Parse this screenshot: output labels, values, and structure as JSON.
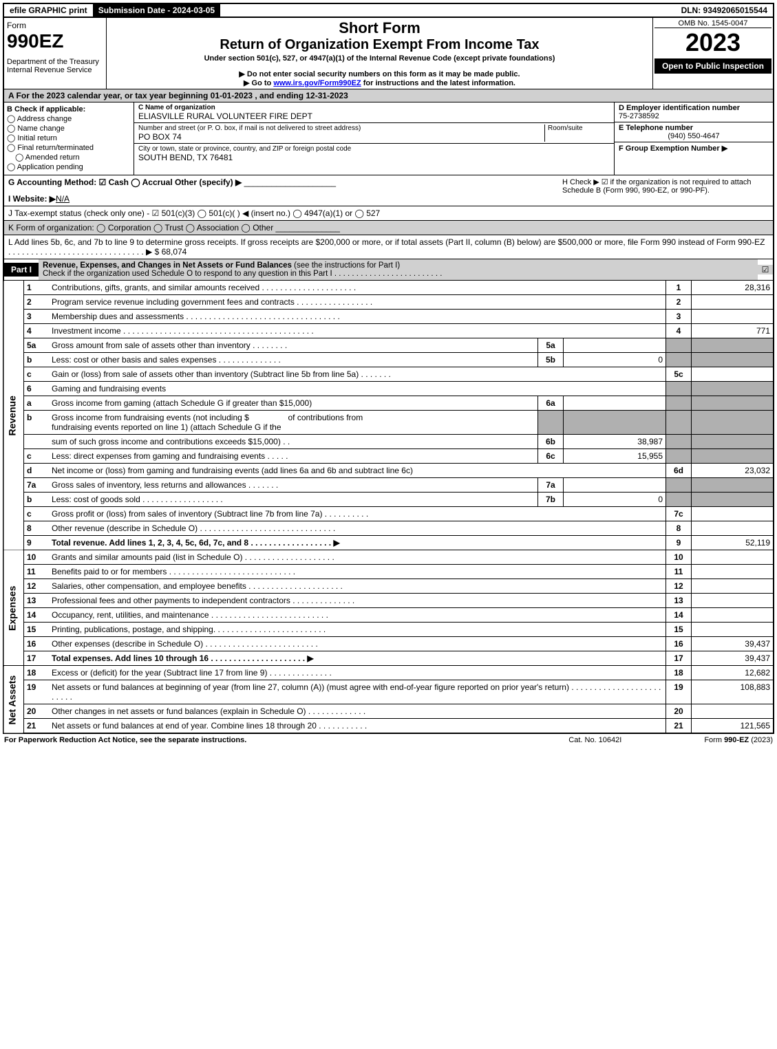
{
  "top": {
    "efile": "efile GRAPHIC print",
    "submission": "Submission Date - 2024-03-05",
    "dln": "DLN: 93492065015544"
  },
  "header": {
    "form_word": "Form",
    "form_num": "990EZ",
    "dept1": "Department of the Treasury",
    "dept2": "Internal Revenue Service",
    "short": "Short Form",
    "title": "Return of Organization Exempt From Income Tax",
    "under": "Under section 501(c), 527, or 4947(a)(1) of the Internal Revenue Code (except private foundations)",
    "do_not": "▶ Do not enter social security numbers on this form as it may be made public.",
    "goto_pre": "▶ Go to ",
    "goto_link": "www.irs.gov/Form990EZ",
    "goto_post": " for instructions and the latest information.",
    "omb": "OMB No. 1545-0047",
    "year": "2023",
    "open": "Open to Public Inspection"
  },
  "rowA": "A  For the 2023 calendar year, or tax year beginning 01-01-2023 , and ending 12-31-2023",
  "boxB": {
    "label": "B  Check if applicable:",
    "addr": "Address change",
    "name": "Name change",
    "init": "Initial return",
    "term": "Final return/terminated",
    "amend": "Amended return",
    "app": "Application pending"
  },
  "boxC": {
    "name_lbl": "C Name of organization",
    "name": "ELIASVILLE RURAL VOLUNTEER FIRE DEPT",
    "street_lbl": "Number and street (or P. O. box, if mail is not delivered to street address)",
    "street": "PO BOX 74",
    "room_lbl": "Room/suite",
    "city_lbl": "City or town, state or province, country, and ZIP or foreign postal code",
    "city": "SOUTH BEND, TX  76481"
  },
  "boxD": {
    "ein_lbl": "D Employer identification number",
    "ein": "75-2738592",
    "tel_lbl": "E Telephone number",
    "tel": "(940) 550-4647",
    "grp_lbl": "F Group Exemption Number  ▶"
  },
  "rowG": {
    "g": "G Accounting Method:  ☑ Cash  ◯ Accrual   Other (specify) ▶",
    "h": "H  Check ▶  ☑ if the organization is not required to attach Schedule B (Form 990, 990-EZ, or 990-PF)."
  },
  "rowI": {
    "lbl": "I Website: ▶",
    "val": "N/A"
  },
  "rowJ": "J Tax-exempt status (check only one) - ☑ 501(c)(3) ◯ 501(c)(  ) ◀ (insert no.) ◯ 4947(a)(1) or ◯ 527",
  "rowK": "K Form of organization:  ◯ Corporation   ◯ Trust   ◯ Association   ◯ Other",
  "rowL": {
    "text": "L Add lines 5b, 6c, and 7b to line 9 to determine gross receipts. If gross receipts are $200,000 or more, or if total assets (Part II, column (B) below) are $500,000 or more, file Form 990 instead of Form 990-EZ . . . . . . . . . . . . . . . . . . . . . . . . . . . . . . ▶",
    "val": "$ 68,074"
  },
  "partI": {
    "label": "Part I",
    "title": "Revenue, Expenses, and Changes in Net Assets or Fund Balances ",
    "sub": "(see the instructions for Part I)",
    "check": "Check if the organization used Schedule O to respond to any question in this Part I . . . . . . . . . . . . . . . . . . . . . . . . .",
    "checkmark": "☑"
  },
  "sidebars": {
    "rev": "Revenue",
    "exp": "Expenses",
    "net": "Net Assets"
  },
  "revenue": [
    {
      "n": "1",
      "d": "Contributions, gifts, grants, and similar amounts received . . . . . . . . . . . . . . . . . . . . .",
      "b": "1",
      "v": "28,316"
    },
    {
      "n": "2",
      "d": "Program service revenue including government fees and contracts . . . . . . . . . . . . . . . . .",
      "b": "2",
      "v": ""
    },
    {
      "n": "3",
      "d": "Membership dues and assessments . . . . . . . . . . . . . . . . . . . . . . . . . . . . . . . . . .",
      "b": "3",
      "v": ""
    },
    {
      "n": "4",
      "d": "Investment income . . . . . . . . . . . . . . . . . . . . . . . . . . . . . . . . . . . . . . . . . .",
      "b": "4",
      "v": "771"
    }
  ],
  "rev5": {
    "a": {
      "n": "5a",
      "d": "Gross amount from sale of assets other than inventory . . . . . . . .",
      "ib": "5a",
      "iv": ""
    },
    "b": {
      "n": "b",
      "d": "Less: cost or other basis and sales expenses . . . . . . . . . . . . . .",
      "ib": "5b",
      "iv": "0"
    },
    "c": {
      "n": "c",
      "d": "Gain or (loss) from sale of assets other than inventory (Subtract line 5b from line 5a) . . . . . . .",
      "b": "5c",
      "v": ""
    }
  },
  "rev6": {
    "hdr": {
      "n": "6",
      "d": "Gaming and fundraising events"
    },
    "a": {
      "n": "a",
      "d": "Gross income from gaming (attach Schedule G if greater than $15,000)",
      "ib": "6a",
      "iv": ""
    },
    "b": {
      "n": "b",
      "d1": "Gross income from fundraising events (not including $",
      "d1b": "of contributions from",
      "d2": "fundraising events reported on line 1) (attach Schedule G if the",
      "d3": "sum of such gross income and contributions exceeds $15,000)   . .",
      "ib": "6b",
      "iv": "38,987"
    },
    "c": {
      "n": "c",
      "d": "Less: direct expenses from gaming and fundraising events   . . . . .",
      "ib": "6c",
      "iv": "15,955"
    },
    "d": {
      "n": "d",
      "d": "Net income or (loss) from gaming and fundraising events (add lines 6a and 6b and subtract line 6c)",
      "b": "6d",
      "v": "23,032"
    }
  },
  "rev7": {
    "a": {
      "n": "7a",
      "d": "Gross sales of inventory, less returns and allowances . . . . . . .",
      "ib": "7a",
      "iv": ""
    },
    "b": {
      "n": "b",
      "d": "Less: cost of goods sold       . . . . . . . . . . . . . . . . . .",
      "ib": "7b",
      "iv": "0"
    },
    "c": {
      "n": "c",
      "d": "Gross profit or (loss) from sales of inventory (Subtract line 7b from line 7a) . . . . . . . . . .",
      "b": "7c",
      "v": ""
    }
  },
  "rev89": [
    {
      "n": "8",
      "d": "Other revenue (describe in Schedule O) . . . . . . . . . . . . . . . . . . . . . . . . . . . . . .",
      "b": "8",
      "v": ""
    },
    {
      "n": "9",
      "d": "Total revenue. Add lines 1, 2, 3, 4, 5c, 6d, 7c, and 8  . . . . . . . . . . . . . . . . . .  ▶",
      "b": "9",
      "v": "52,119",
      "bold": true
    }
  ],
  "expenses": [
    {
      "n": "10",
      "d": "Grants and similar amounts paid (list in Schedule O) . . . . . . . . . . . . . . . . . . . .",
      "b": "10",
      "v": ""
    },
    {
      "n": "11",
      "d": "Benefits paid to or for members       . . . . . . . . . . . . . . . . . . . . . . . . . . . .",
      "b": "11",
      "v": ""
    },
    {
      "n": "12",
      "d": "Salaries, other compensation, and employee benefits . . . . . . . . . . . . . . . . . . . . .",
      "b": "12",
      "v": ""
    },
    {
      "n": "13",
      "d": "Professional fees and other payments to independent contractors . . . . . . . . . . . . . .",
      "b": "13",
      "v": ""
    },
    {
      "n": "14",
      "d": "Occupancy, rent, utilities, and maintenance . . . . . . . . . . . . . . . . . . . . . . . . . .",
      "b": "14",
      "v": ""
    },
    {
      "n": "15",
      "d": "Printing, publications, postage, and shipping. . . . . . . . . . . . . . . . . . . . . . . . .",
      "b": "15",
      "v": ""
    },
    {
      "n": "16",
      "d": "Other expenses (describe in Schedule O)    . . . . . . . . . . . . . . . . . . . . . . . . .",
      "b": "16",
      "v": "39,437"
    },
    {
      "n": "17",
      "d": "Total expenses. Add lines 10 through 16     . . . . . . . . . . . . . . . . . . . . .  ▶",
      "b": "17",
      "v": "39,437",
      "bold": true
    }
  ],
  "net": [
    {
      "n": "18",
      "d": "Excess or (deficit) for the year (Subtract line 17 from line 9)        . . . . . . . . . . . . . .",
      "b": "18",
      "v": "12,682"
    },
    {
      "n": "19",
      "d": "Net assets or fund balances at beginning of year (from line 27, column (A)) (must agree with end-of-year figure reported on prior year's return) . . . . . . . . . . . . . . . . . . . . . . . . .",
      "b": "19",
      "v": "108,883"
    },
    {
      "n": "20",
      "d": "Other changes in net assets or fund balances (explain in Schedule O) . . . . . . . . . . . . .",
      "b": "20",
      "v": ""
    },
    {
      "n": "21",
      "d": "Net assets or fund balances at end of year. Combine lines 18 through 20 . . . . . . . . . . .",
      "b": "21",
      "v": "121,565"
    }
  ],
  "footer": {
    "left": "For Paperwork Reduction Act Notice, see the separate instructions.",
    "mid": "Cat. No. 10642I",
    "right_pre": "Form ",
    "right_bold": "990-EZ",
    "right_post": " (2023)"
  }
}
